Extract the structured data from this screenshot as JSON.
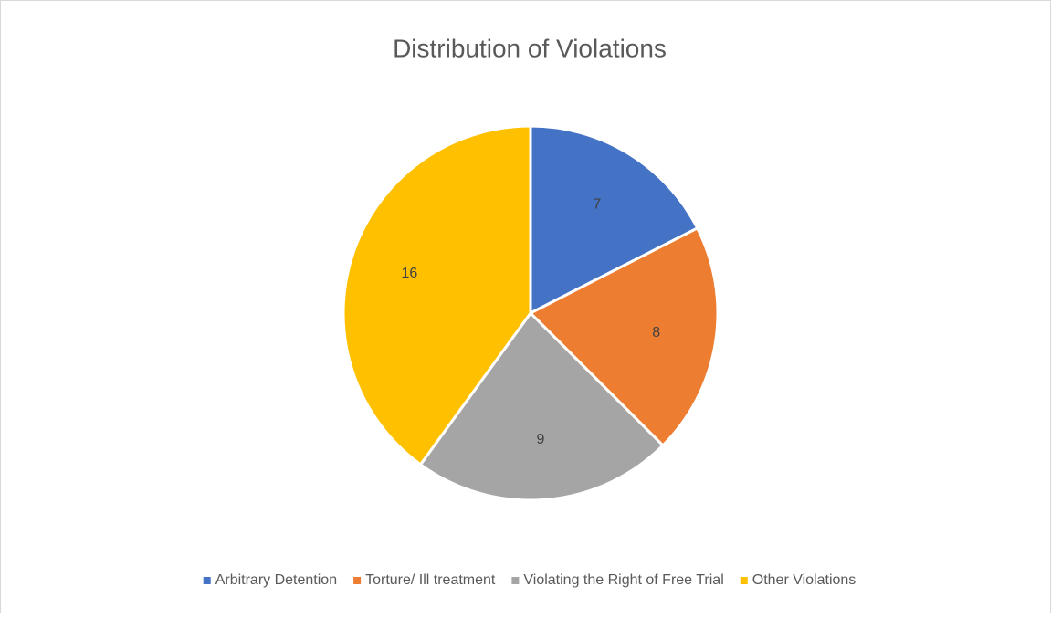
{
  "chart_data": {
    "type": "pie",
    "title": "Distribution of Violations",
    "categories": [
      "Arbitrary Detention",
      "Torture/ Ill treatment",
      "Violating the Right of Free Trial",
      "Other Violations"
    ],
    "values": [
      7,
      8,
      9,
      16
    ],
    "colors": [
      "#4472c4",
      "#ed7d31",
      "#a5a5a5",
      "#ffc000"
    ],
    "legend": "bottom"
  }
}
